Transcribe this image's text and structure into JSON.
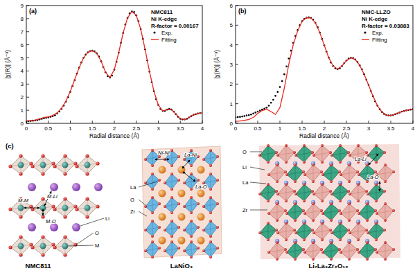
{
  "chart_data": [
    {
      "type": "line",
      "title": "(a)",
      "annotations": [
        "NMC811",
        "Ni K-edge",
        "R-factor = 0.00167"
      ],
      "x_label": "Radial distance (Å)",
      "y_label": "|χ(R)| (Å⁻³)",
      "xlim": [
        0,
        4
      ],
      "xticks": [
        0,
        0.5,
        1,
        1.5,
        2,
        2.5,
        3,
        3.5,
        4
      ],
      "ylim": [
        0,
        9
      ],
      "yticks": [
        0,
        1,
        2,
        3,
        4,
        5,
        6,
        7,
        8,
        9
      ],
      "grid": false,
      "legend": "upper right",
      "series": [
        {
          "name": "Exp.",
          "color": "#000000",
          "marker": "circle",
          "line_style": "none",
          "x": [
            0,
            0.05,
            0.1,
            0.15,
            0.2,
            0.25,
            0.3,
            0.35,
            0.4,
            0.45,
            0.5,
            0.55,
            0.6,
            0.65,
            0.7,
            0.75,
            0.8,
            0.85,
            0.9,
            0.95,
            1,
            1.05,
            1.1,
            1.15,
            1.2,
            1.25,
            1.3,
            1.35,
            1.4,
            1.45,
            1.5,
            1.55,
            1.6,
            1.65,
            1.7,
            1.75,
            1.8,
            1.85,
            1.9,
            1.95,
            2,
            2.05,
            2.1,
            2.15,
            2.2,
            2.25,
            2.3,
            2.35,
            2.4,
            2.45,
            2.5,
            2.55,
            2.6,
            2.65,
            2.7,
            2.75,
            2.8,
            2.85,
            2.9,
            2.95,
            3,
            3.05,
            3.1,
            3.15,
            3.2,
            3.25,
            3.3,
            3.35,
            3.4,
            3.45,
            3.5,
            3.55,
            3.6,
            3.65,
            3.7,
            3.75,
            3.8,
            3.85,
            3.9,
            3.95,
            4
          ],
          "values": [
            0.15,
            0.16,
            0.18,
            0.2,
            0.22,
            0.25,
            0.3,
            0.35,
            0.38,
            0.42,
            0.45,
            0.5,
            0.55,
            0.62,
            0.75,
            0.9,
            1.1,
            1.35,
            1.65,
            2.0,
            2.4,
            2.85,
            3.3,
            3.8,
            4.25,
            4.65,
            5.0,
            5.25,
            5.42,
            5.52,
            5.55,
            5.5,
            5.35,
            5.1,
            4.75,
            4.3,
            3.9,
            3.6,
            3.5,
            3.65,
            4.1,
            4.7,
            5.4,
            6.15,
            6.9,
            7.55,
            8.05,
            8.4,
            8.55,
            8.5,
            8.25,
            7.8,
            7.2,
            6.45,
            5.65,
            4.8,
            3.95,
            3.15,
            2.45,
            1.85,
            1.4,
            1.1,
            0.95,
            0.95,
            1.05,
            1.1,
            1.05,
            0.9,
            0.7,
            0.5,
            0.35,
            0.3,
            0.3,
            0.35,
            0.45,
            0.55,
            0.65,
            0.7,
            0.75,
            0.78,
            0.8
          ]
        },
        {
          "name": "Fitting",
          "color": "#e8271f",
          "marker": "none",
          "line_style": "solid",
          "x": [
            0,
            0.1,
            0.2,
            0.3,
            0.4,
            0.5,
            0.6,
            0.7,
            0.8,
            0.9,
            1,
            1.1,
            1.2,
            1.3,
            1.4,
            1.5,
            1.6,
            1.7,
            1.8,
            1.9,
            2,
            2.1,
            2.2,
            2.3,
            2.4,
            2.5,
            2.6,
            2.7,
            2.8,
            2.9,
            3,
            3.1,
            3.2,
            3.3,
            3.4,
            3.5,
            3.6,
            3.7,
            3.8,
            3.9,
            4
          ],
          "values": [
            0.2,
            0.2,
            0.25,
            0.35,
            0.45,
            0.5,
            0.6,
            0.8,
            1.15,
            1.7,
            2.45,
            3.35,
            4.25,
            5.0,
            5.42,
            5.55,
            5.35,
            4.75,
            3.9,
            3.5,
            4.1,
            5.4,
            6.9,
            8.05,
            8.55,
            8.25,
            7.2,
            5.65,
            3.95,
            2.45,
            1.4,
            0.95,
            1.05,
            1.05,
            0.7,
            0.35,
            0.3,
            0.45,
            0.65,
            0.75,
            0.8
          ]
        }
      ]
    },
    {
      "type": "line",
      "title": "(b)",
      "annotations": [
        "NMC-LLZO",
        "Ni K-edge",
        "R-factor = 0.03883"
      ],
      "x_label": "Radial distance (Å)",
      "y_label": "|χ(R)| (Å⁻³)",
      "xlim": [
        0,
        4
      ],
      "xticks": [
        0,
        0.5,
        1,
        1.5,
        2,
        2.5,
        3,
        3.5,
        4
      ],
      "ylim": [
        0,
        6
      ],
      "yticks": [
        0,
        1,
        2,
        3,
        4,
        5,
        6
      ],
      "grid": false,
      "legend": "upper right",
      "series": [
        {
          "name": "Exp.",
          "color": "#000000",
          "marker": "circle",
          "line_style": "none",
          "x": [
            0,
            0.05,
            0.1,
            0.15,
            0.2,
            0.25,
            0.3,
            0.35,
            0.4,
            0.45,
            0.5,
            0.55,
            0.6,
            0.65,
            0.7,
            0.75,
            0.8,
            0.85,
            0.9,
            0.95,
            1,
            1.05,
            1.1,
            1.15,
            1.2,
            1.25,
            1.3,
            1.35,
            1.4,
            1.45,
            1.5,
            1.55,
            1.6,
            1.65,
            1.7,
            1.75,
            1.8,
            1.85,
            1.9,
            1.95,
            2,
            2.05,
            2.1,
            2.15,
            2.2,
            2.25,
            2.3,
            2.35,
            2.4,
            2.45,
            2.5,
            2.55,
            2.6,
            2.65,
            2.7,
            2.75,
            2.8,
            2.85,
            2.9,
            2.95,
            3,
            3.05,
            3.1,
            3.15,
            3.2,
            3.25,
            3.3,
            3.35,
            3.4,
            3.45,
            3.5,
            3.55,
            3.6,
            3.65,
            3.7,
            3.75,
            3.8,
            3.85,
            3.9,
            3.95,
            4
          ],
          "values": [
            0.3,
            0.32,
            0.33,
            0.35,
            0.37,
            0.4,
            0.42,
            0.45,
            0.5,
            0.55,
            0.6,
            0.65,
            0.7,
            0.75,
            0.8,
            0.9,
            1.05,
            1.2,
            1.4,
            1.6,
            1.85,
            2.15,
            2.5,
            2.9,
            3.3,
            3.7,
            4.1,
            4.45,
            4.75,
            5.0,
            5.2,
            5.32,
            5.38,
            5.4,
            5.37,
            5.28,
            5.12,
            4.9,
            4.62,
            4.3,
            3.98,
            3.65,
            3.35,
            3.1,
            2.92,
            2.8,
            2.76,
            2.8,
            2.92,
            3.07,
            3.2,
            3.3,
            3.34,
            3.32,
            3.25,
            3.12,
            2.95,
            2.75,
            2.5,
            2.22,
            1.95,
            1.65,
            1.38,
            1.12,
            0.9,
            0.72,
            0.58,
            0.48,
            0.42,
            0.4,
            0.4,
            0.42,
            0.46,
            0.5,
            0.55,
            0.6,
            0.63,
            0.66,
            0.68,
            0.7,
            0.72
          ]
        },
        {
          "name": "Fitting",
          "color": "#e8271f",
          "marker": "none",
          "line_style": "solid",
          "x": [
            0,
            0.1,
            0.2,
            0.3,
            0.4,
            0.5,
            0.6,
            0.7,
            0.8,
            0.9,
            1,
            1.1,
            1.2,
            1.3,
            1.4,
            1.5,
            1.6,
            1.7,
            1.8,
            1.9,
            2,
            2.1,
            2.2,
            2.3,
            2.4,
            2.5,
            2.6,
            2.7,
            2.8,
            2.9,
            3,
            3.1,
            3.2,
            3.3,
            3.4,
            3.5,
            3.6,
            3.7,
            3.8,
            3.9,
            4
          ],
          "values": [
            0.1,
            0.12,
            0.15,
            0.2,
            0.3,
            0.5,
            0.65,
            0.72,
            0.6,
            0.45,
            0.8,
            1.8,
            3.0,
            4.0,
            4.7,
            5.2,
            5.38,
            5.37,
            5.12,
            4.62,
            3.98,
            3.35,
            2.92,
            2.76,
            2.92,
            3.2,
            3.34,
            3.25,
            2.95,
            2.5,
            1.95,
            1.38,
            0.9,
            0.58,
            0.42,
            0.4,
            0.46,
            0.55,
            0.63,
            0.68,
            0.72
          ]
        }
      ]
    }
  ],
  "panel_label": "(c)",
  "structures": [
    {
      "title": "NMC811",
      "atom_labels": [
        "Li",
        "O",
        "M"
      ],
      "bond_labels": [
        "M-M",
        "M-Li",
        "M-O"
      ]
    },
    {
      "title": "LaNiO₃",
      "atom_labels": [
        "La",
        "O",
        "Zr"
      ],
      "bond_labels": [
        "Ni-Ni",
        "La-Ni",
        "La-O"
      ]
    },
    {
      "title": "Li₇La₃Zr₂O₁₂",
      "atom_labels": [
        "O",
        "Li",
        "La",
        "Zr"
      ],
      "bond_labels": [
        "La-Li",
        "La-O"
      ]
    }
  ]
}
